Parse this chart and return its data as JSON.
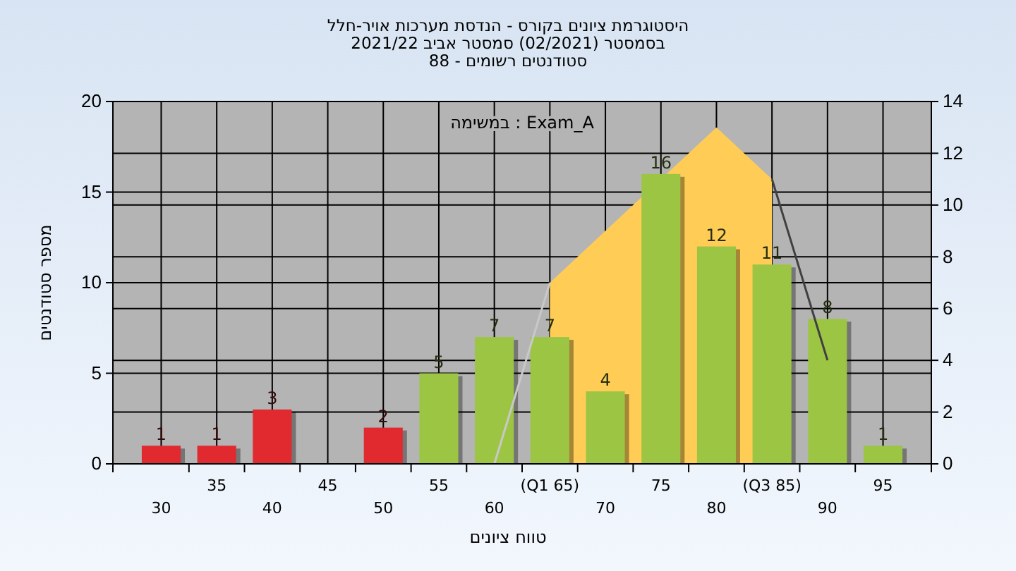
{
  "chart_data": {
    "type": "bar",
    "title": "היסטוגרמת ציונים בקורס - הנדסת מערכות אויר-חלל",
    "subtitle": "בסמסטר  (02/2021)  סמסטר אביב 2021/22\nסטודנטים רשומים - 88",
    "xlabel": "טווח ציונים",
    "ylabel": "מספר סטודנטים",
    "annotations": [
      "במשימה : Exam_A"
    ],
    "categories": [
      "30",
      "35",
      "40",
      "45",
      "50",
      "55",
      "60",
      "(Q1 65)",
      "70",
      "75",
      "80",
      "(Q3 85)",
      "90",
      "95"
    ],
    "series": [
      {
        "type": "area",
        "axis": "y2",
        "color": "#ffcc55",
        "values": [
          null,
          null,
          null,
          null,
          null,
          null,
          null,
          7,
          9,
          null,
          13,
          11,
          null,
          null
        ]
      },
      {
        "type": "line",
        "axis": "y2",
        "color": "#c8c8c8",
        "values": [
          null,
          null,
          null,
          null,
          null,
          null,
          0,
          7,
          null,
          null,
          null,
          null,
          null,
          null
        ]
      },
      {
        "type": "line",
        "axis": "y2",
        "color": "#404040",
        "values": [
          null,
          null,
          null,
          null,
          null,
          null,
          null,
          null,
          null,
          null,
          null,
          11,
          4,
          null
        ]
      },
      {
        "colors": [
          "#e02a30",
          "#e02a30",
          "#e02a30",
          "#e02a30",
          "#e02a30",
          "#9cc544",
          "#9cc544",
          "#9cc544",
          "#9cc544",
          "#9cc544",
          "#9cc544",
          "#9cc544",
          "#9cc544",
          "#9cc544"
        ],
        "values": [
          1,
          1,
          3,
          0,
          2,
          5,
          7,
          7,
          4,
          16,
          12,
          11,
          8,
          1
        ],
        "value_labels": [
          "1",
          "1",
          "3",
          null,
          "2",
          "5",
          "7",
          "7",
          "4",
          "16",
          "12",
          "11",
          "8",
          "1"
        ]
      }
    ],
    "ylim": [
      0,
      20
    ],
    "yticks": [
      0,
      5,
      10,
      15,
      20
    ],
    "y2lim": [
      0,
      14
    ],
    "y2ticks": [
      0,
      2,
      4,
      6,
      8,
      10,
      12,
      14
    ],
    "grid": true
  }
}
